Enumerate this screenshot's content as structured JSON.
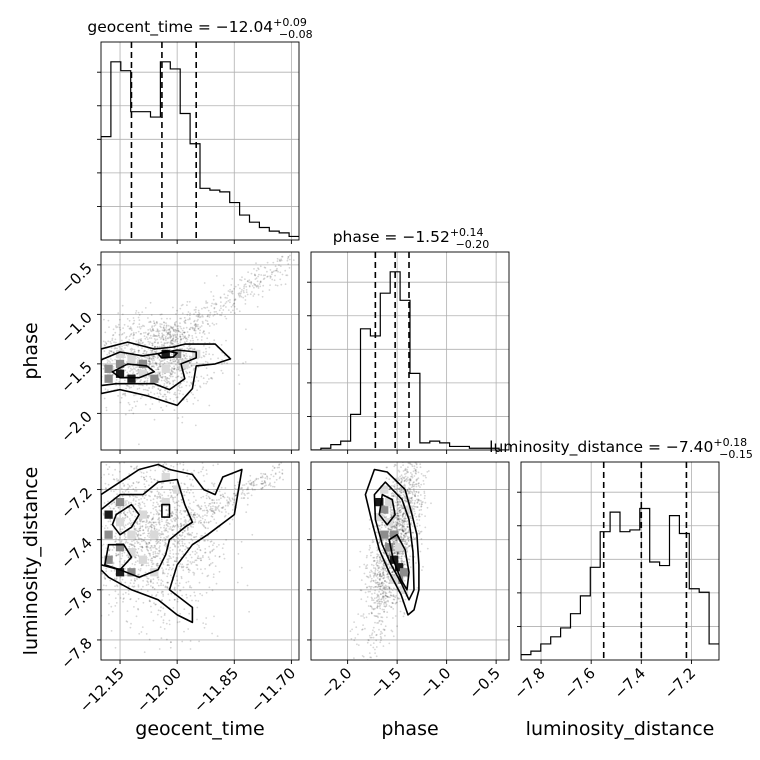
{
  "chart_data": {
    "type": "corner",
    "grid": true,
    "parameters": [
      {
        "key": "geocent_time",
        "label": "geocent_time",
        "range": [
          -12.2,
          -11.68
        ],
        "ticks": [
          -12.15,
          -12.0,
          -11.85,
          -11.7
        ],
        "tick_labels": [
          "−12.15",
          "−12.00",
          "−11.85",
          "−11.70"
        ]
      },
      {
        "key": "phase",
        "label": "phase",
        "range": [
          -2.37,
          -0.37
        ],
        "ticks": [
          -2.0,
          -1.5,
          -1.0,
          -0.5
        ],
        "tick_labels": [
          "−2.0",
          "−1.5",
          "−1.0",
          "−0.5"
        ]
      },
      {
        "key": "luminosity_distance",
        "label": "luminosity_distance",
        "range": [
          -7.88,
          -7.09
        ],
        "ticks": [
          -7.8,
          -7.6,
          -7.4,
          -7.2
        ],
        "tick_labels": [
          "−7.8",
          "−7.6",
          "−7.4",
          "−7.2"
        ]
      }
    ],
    "diagonal_titles": [
      {
        "param": "geocent_time",
        "name": "geocent_time",
        "value": "−12.04",
        "plus": "+0.09",
        "minus": "−0.08"
      },
      {
        "param": "phase",
        "name": "phase",
        "value": "−1.52",
        "plus": "+0.14",
        "minus": "−0.20"
      },
      {
        "param": "luminosity_distance",
        "name": "luminosity_distance",
        "value": "−7.40",
        "plus": "+0.18",
        "minus": "−0.15"
      }
    ],
    "quantiles": {
      "geocent_time": [
        -12.12,
        -12.04,
        -11.95
      ],
      "phase": [
        -1.72,
        -1.52,
        -1.38
      ],
      "luminosity_distance": [
        -7.55,
        -7.4,
        -7.22
      ]
    },
    "histograms": {
      "geocent_time": {
        "edges": [
          -12.2,
          -12.174,
          -12.148,
          -12.122,
          -12.096,
          -12.07,
          -12.044,
          -12.018,
          -11.992,
          -11.966,
          -11.94,
          -11.914,
          -11.888,
          -11.862,
          -11.836,
          -11.81,
          -11.784,
          -11.758,
          -11.732,
          -11.706,
          -11.68
        ],
        "counts": [
          0.58,
          1.0,
          0.95,
          0.72,
          0.72,
          0.69,
          1.0,
          0.96,
          0.71,
          0.54,
          0.29,
          0.28,
          0.27,
          0.21,
          0.14,
          0.1,
          0.07,
          0.05,
          0.04,
          0.02
        ]
      },
      "phase": {
        "edges": [
          -2.37,
          -2.27,
          -2.17,
          -2.07,
          -1.97,
          -1.87,
          -1.77,
          -1.67,
          -1.57,
          -1.47,
          -1.37,
          -1.27,
          -1.17,
          -1.07,
          -0.97,
          -0.87,
          -0.77,
          -0.67,
          -0.57,
          -0.47,
          -0.37
        ],
        "counts": [
          0.0,
          0.01,
          0.03,
          0.05,
          0.2,
          0.68,
          0.64,
          0.88,
          1.0,
          0.84,
          0.43,
          0.04,
          0.05,
          0.04,
          0.02,
          0.02,
          0.01,
          0.01,
          0.01,
          0.0
        ]
      },
      "luminosity_distance": {
        "edges": [
          -7.88,
          -7.8405,
          -7.801,
          -7.7615,
          -7.722,
          -7.6825,
          -7.643,
          -7.6035,
          -7.564,
          -7.5245,
          -7.485,
          -7.4455,
          -7.406,
          -7.3665,
          -7.327,
          -7.2875,
          -7.248,
          -7.2085,
          -7.169,
          -7.1295,
          -7.09
        ],
        "counts": [
          0.03,
          0.05,
          0.09,
          0.13,
          0.18,
          0.26,
          0.36,
          0.52,
          0.72,
          0.83,
          0.72,
          0.73,
          0.85,
          0.55,
          0.53,
          0.81,
          0.71,
          0.4,
          0.38,
          0.09
        ]
      }
    },
    "samples_2d": [
      {
        "x": "geocent_time",
        "y": "phase",
        "center": [
          -12.06,
          -1.45
        ],
        "cov": [
          [
            0.0064,
            0.0
          ],
          [
            0.0,
            0.05
          ]
        ],
        "n": 1300,
        "tail": {
          "from": [
            -12.05,
            -1.3
          ],
          "to": [
            -11.7,
            -0.45
          ],
          "n": 350,
          "spread": 0.07
        }
      },
      {
        "x": "geocent_time",
        "y": "luminosity_distance",
        "center": [
          -12.07,
          -7.38
        ],
        "cov": [
          [
            0.0081,
            0.0
          ],
          [
            0.0,
            0.0289
          ]
        ],
        "n": 1700,
        "tail": {
          "from": [
            -12.0,
            -7.35
          ],
          "to": [
            -11.72,
            -7.12
          ],
          "n": 250,
          "spread": 0.05
        }
      },
      {
        "x": "phase",
        "y": "luminosity_distance",
        "center": [
          -1.52,
          -7.4
        ],
        "cov": [
          [
            0.02,
            0.018
          ],
          [
            0.018,
            0.034
          ]
        ],
        "n": 1700
      }
    ],
    "cells_2d": [
      {
        "x": "geocent_time",
        "y": "phase",
        "cells": [
          [
            -12.18,
            -1.55,
            2
          ],
          [
            -12.15,
            -1.6,
            3
          ],
          [
            -12.18,
            -1.65,
            2
          ],
          [
            -12.12,
            -1.65,
            3
          ],
          [
            -12.15,
            -1.5,
            2
          ],
          [
            -12.09,
            -1.5,
            2
          ],
          [
            -12.06,
            -1.65,
            2
          ],
          [
            -12.03,
            -1.4,
            3
          ],
          [
            -12.0,
            -1.4,
            2
          ],
          [
            -12.09,
            -1.6,
            1
          ],
          [
            -12.03,
            -1.55,
            1
          ],
          [
            -11.98,
            -1.5,
            1
          ],
          [
            -12.15,
            -1.4,
            1
          ],
          [
            -12.12,
            -1.45,
            1
          ],
          [
            -11.95,
            -1.4,
            1
          ]
        ]
      },
      {
        "x": "geocent_time",
        "y": "luminosity_distance",
        "cells": [
          [
            -12.18,
            -7.38,
            2
          ],
          [
            -12.15,
            -7.43,
            2
          ],
          [
            -12.18,
            -7.48,
            2
          ],
          [
            -12.15,
            -7.53,
            3
          ],
          [
            -12.12,
            -7.53,
            2
          ],
          [
            -12.18,
            -7.3,
            3
          ],
          [
            -12.15,
            -7.25,
            2
          ],
          [
            -12.09,
            -7.48,
            1
          ],
          [
            -12.06,
            -7.53,
            1
          ],
          [
            -12.12,
            -7.38,
            1
          ],
          [
            -12.09,
            -7.3,
            1
          ],
          [
            -12.06,
            -7.38,
            1
          ],
          [
            -12.03,
            -7.25,
            1
          ],
          [
            -12.03,
            -7.15,
            1
          ],
          [
            -12.0,
            -7.2,
            1
          ],
          [
            -12.15,
            -7.33,
            1
          ],
          [
            -12.12,
            -7.45,
            1
          ]
        ]
      },
      {
        "x": "phase",
        "y": "luminosity_distance",
        "cells": [
          [
            -1.68,
            -7.25,
            3
          ],
          [
            -1.63,
            -7.28,
            2
          ],
          [
            -1.63,
            -7.38,
            2
          ],
          [
            -1.58,
            -7.43,
            2
          ],
          [
            -1.53,
            -7.48,
            3
          ],
          [
            -1.48,
            -7.51,
            3
          ],
          [
            -1.48,
            -7.56,
            2
          ],
          [
            -1.53,
            -7.38,
            2
          ],
          [
            -1.43,
            -7.53,
            2
          ],
          [
            -1.68,
            -7.31,
            1
          ],
          [
            -1.58,
            -7.33,
            1
          ],
          [
            -1.58,
            -7.25,
            1
          ],
          [
            -1.53,
            -7.56,
            1
          ],
          [
            -1.43,
            -7.6,
            1
          ],
          [
            -1.38,
            -7.28,
            1
          ],
          [
            -1.63,
            -7.2,
            1
          ],
          [
            -1.48,
            -7.43,
            1
          ]
        ]
      }
    ],
    "contours": [
      {
        "x": "geocent_time",
        "y": "phase",
        "levels": [
          [
            [
              -12.2,
              -1.35
            ],
            [
              -12.13,
              -1.28
            ],
            [
              -12.06,
              -1.35
            ],
            [
              -12.01,
              -1.33
            ],
            [
              -11.98,
              -1.3
            ],
            [
              -11.9,
              -1.3
            ],
            [
              -11.86,
              -1.45
            ],
            [
              -11.9,
              -1.5
            ],
            [
              -11.95,
              -1.52
            ],
            [
              -11.96,
              -1.75
            ],
            [
              -12.0,
              -1.92
            ],
            [
              -12.08,
              -1.82
            ],
            [
              -12.15,
              -1.76
            ],
            [
              -12.2,
              -1.8
            ]
          ],
          [
            [
              -12.2,
              -1.46
            ],
            [
              -12.15,
              -1.38
            ],
            [
              -12.09,
              -1.42
            ],
            [
              -12.04,
              -1.39
            ],
            [
              -12.0,
              -1.36
            ],
            [
              -11.95,
              -1.38
            ],
            [
              -11.95,
              -1.44
            ],
            [
              -11.99,
              -1.5
            ],
            [
              -11.98,
              -1.65
            ],
            [
              -12.02,
              -1.76
            ],
            [
              -12.06,
              -1.7
            ],
            [
              -12.1,
              -1.7
            ],
            [
              -12.16,
              -1.7
            ],
            [
              -12.2,
              -1.72
            ]
          ],
          [
            [
              -12.17,
              -1.58
            ],
            [
              -12.13,
              -1.5
            ],
            [
              -12.08,
              -1.52
            ],
            [
              -12.06,
              -1.58
            ],
            [
              -12.1,
              -1.64
            ],
            [
              -12.15,
              -1.64
            ]
          ],
          [
            [
              -12.05,
              -1.4
            ],
            [
              -12.03,
              -1.37
            ],
            [
              -12.0,
              -1.39
            ],
            [
              -12.01,
              -1.43
            ],
            [
              -12.04,
              -1.44
            ]
          ]
        ]
      },
      {
        "x": "geocent_time",
        "y": "luminosity_distance",
        "levels": [
          [
            [
              -12.2,
              -7.22
            ],
            [
              -12.15,
              -7.17
            ],
            [
              -12.1,
              -7.12
            ],
            [
              -12.05,
              -7.1
            ],
            [
              -12.02,
              -7.12
            ],
            [
              -11.96,
              -7.14
            ],
            [
              -11.93,
              -7.2
            ],
            [
              -11.9,
              -7.22
            ],
            [
              -11.88,
              -7.15
            ],
            [
              -11.83,
              -7.12
            ],
            [
              -11.85,
              -7.3
            ],
            [
              -11.92,
              -7.38
            ],
            [
              -11.96,
              -7.42
            ],
            [
              -12.0,
              -7.5
            ],
            [
              -12.02,
              -7.6
            ],
            [
              -11.96,
              -7.67
            ],
            [
              -11.96,
              -7.73
            ],
            [
              -12.0,
              -7.7
            ],
            [
              -12.05,
              -7.64
            ],
            [
              -12.12,
              -7.6
            ],
            [
              -12.18,
              -7.55
            ],
            [
              -12.2,
              -7.52
            ]
          ],
          [
            [
              -12.2,
              -7.28
            ],
            [
              -12.15,
              -7.22
            ],
            [
              -12.09,
              -7.22
            ],
            [
              -12.05,
              -7.17
            ],
            [
              -12.0,
              -7.16
            ],
            [
              -11.98,
              -7.26
            ],
            [
              -11.96,
              -7.33
            ],
            [
              -11.98,
              -7.35
            ],
            [
              -12.02,
              -7.4
            ],
            [
              -12.03,
              -7.46
            ],
            [
              -12.05,
              -7.52
            ],
            [
              -12.1,
              -7.55
            ],
            [
              -12.15,
              -7.52
            ],
            [
              -12.2,
              -7.5
            ]
          ],
          [
            [
              -12.16,
              -7.3
            ],
            [
              -12.12,
              -7.26
            ],
            [
              -12.1,
              -7.3
            ],
            [
              -12.12,
              -7.35
            ],
            [
              -12.15,
              -7.38
            ],
            [
              -12.17,
              -7.34
            ]
          ],
          [
            [
              -12.04,
              -7.26
            ],
            [
              -12.02,
              -7.26
            ],
            [
              -12.02,
              -7.31
            ],
            [
              -12.04,
              -7.31
            ]
          ],
          [
            [
              -12.18,
              -7.42
            ],
            [
              -12.14,
              -7.42
            ],
            [
              -12.12,
              -7.47
            ],
            [
              -12.15,
              -7.52
            ],
            [
              -12.19,
              -7.5
            ]
          ]
        ]
      },
      {
        "x": "phase",
        "y": "luminosity_distance",
        "levels": [
          [
            [
              -1.82,
              -7.22
            ],
            [
              -1.73,
              -7.12
            ],
            [
              -1.6,
              -7.13
            ],
            [
              -1.42,
              -7.2
            ],
            [
              -1.35,
              -7.3
            ],
            [
              -1.3,
              -7.38
            ],
            [
              -1.28,
              -7.5
            ],
            [
              -1.28,
              -7.6
            ],
            [
              -1.33,
              -7.68
            ],
            [
              -1.39,
              -7.7
            ],
            [
              -1.46,
              -7.62
            ],
            [
              -1.58,
              -7.53
            ],
            [
              -1.68,
              -7.44
            ],
            [
              -1.76,
              -7.32
            ]
          ],
          [
            [
              -1.73,
              -7.22
            ],
            [
              -1.62,
              -7.17
            ],
            [
              -1.45,
              -7.24
            ],
            [
              -1.38,
              -7.32
            ],
            [
              -1.34,
              -7.45
            ],
            [
              -1.33,
              -7.6
            ],
            [
              -1.38,
              -7.64
            ],
            [
              -1.45,
              -7.58
            ],
            [
              -1.56,
              -7.5
            ],
            [
              -1.65,
              -7.42
            ],
            [
              -1.72,
              -7.32
            ]
          ],
          [
            [
              -1.65,
              -7.22
            ],
            [
              -1.55,
              -7.24
            ],
            [
              -1.52,
              -7.3
            ],
            [
              -1.6,
              -7.34
            ],
            [
              -1.68,
              -7.3
            ]
          ],
          [
            [
              -1.58,
              -7.4
            ],
            [
              -1.5,
              -7.38
            ],
            [
              -1.42,
              -7.44
            ],
            [
              -1.38,
              -7.53
            ],
            [
              -1.4,
              -7.6
            ],
            [
              -1.46,
              -7.56
            ],
            [
              -1.54,
              -7.48
            ]
          ]
        ]
      }
    ]
  }
}
